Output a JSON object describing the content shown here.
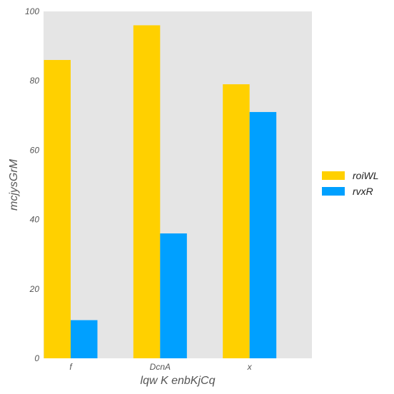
{
  "chart_data": {
    "type": "bar",
    "title": "",
    "xlabel": "lqw  K enbKjCq",
    "ylabel": "mcjysGrM",
    "categories": [
      "f",
      "DcnA",
      "x"
    ],
    "series": [
      {
        "name": "roiWL",
        "values": [
          86,
          96,
          79
        ],
        "color": "#ffd000"
      },
      {
        "name": "rvxR",
        "values": [
          11,
          36,
          71
        ],
        "color": "#00a0ff"
      }
    ],
    "ylim": [
      0,
      100
    ],
    "yticks": [
      0,
      20,
      40,
      60,
      80,
      100
    ],
    "grid": false,
    "legend_position": "right",
    "plot_background": "#e5e5e5"
  }
}
